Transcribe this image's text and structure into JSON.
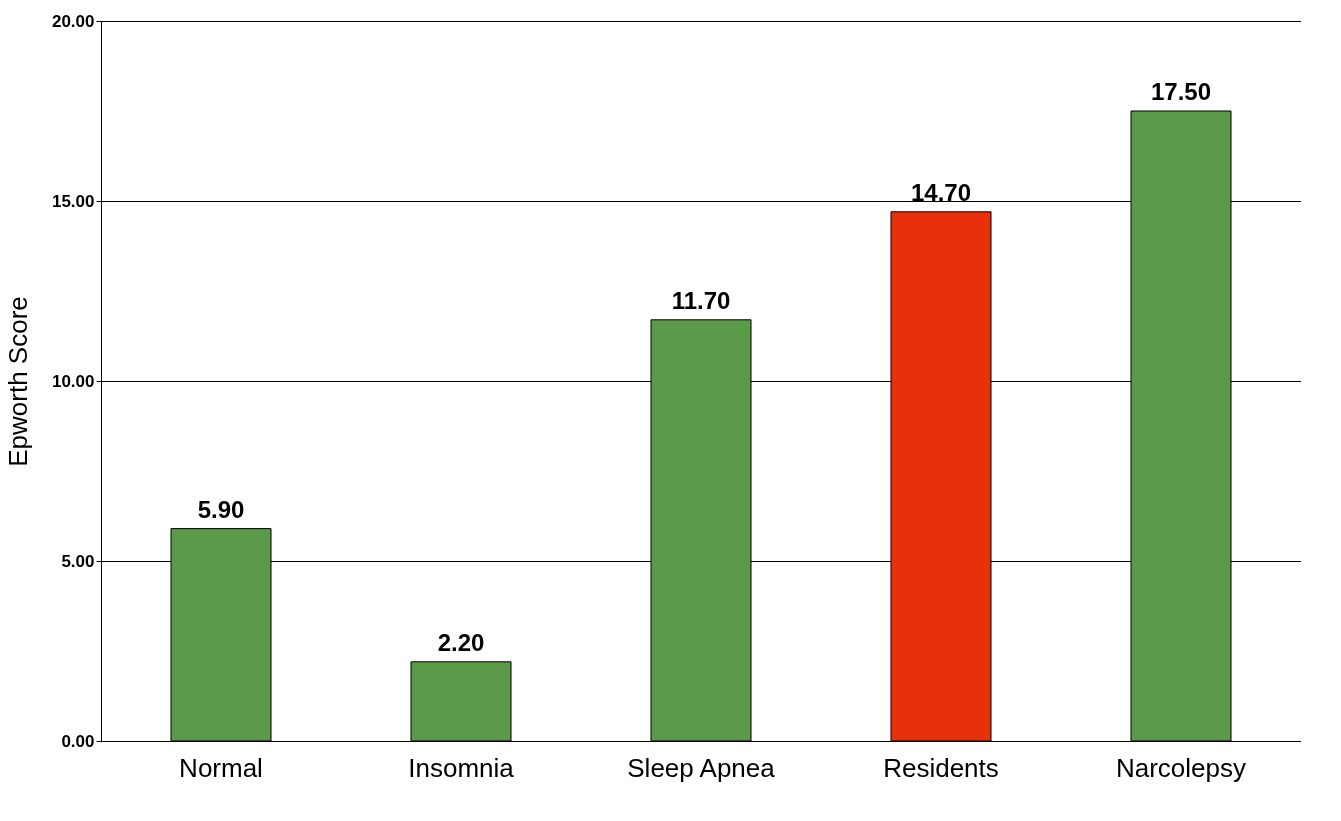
{
  "chart_data": {
    "type": "bar",
    "ylabel": "Epworth Score",
    "categories": [
      "Normal",
      "Insomnia",
      "Sleep Apnea",
      "Residents",
      "Narcolepsy"
    ],
    "values": [
      5.9,
      2.2,
      11.7,
      14.7,
      17.5
    ],
    "colors": [
      "#5a9a48",
      "#5a9a48",
      "#5a9a48",
      "#e8300a",
      "#5a9a48"
    ],
    "value_labels": [
      "5.90",
      "2.20",
      "11.70",
      "14.70",
      "17.50"
    ],
    "ylim": [
      0,
      20
    ],
    "yticks": [
      {
        "value": 0,
        "label": "0.00"
      },
      {
        "value": 5,
        "label": "5.00"
      },
      {
        "value": 10,
        "label": "10.00"
      },
      {
        "value": 15,
        "label": "15.00"
      },
      {
        "value": 20,
        "label": "20.00"
      }
    ],
    "grid": "y"
  }
}
